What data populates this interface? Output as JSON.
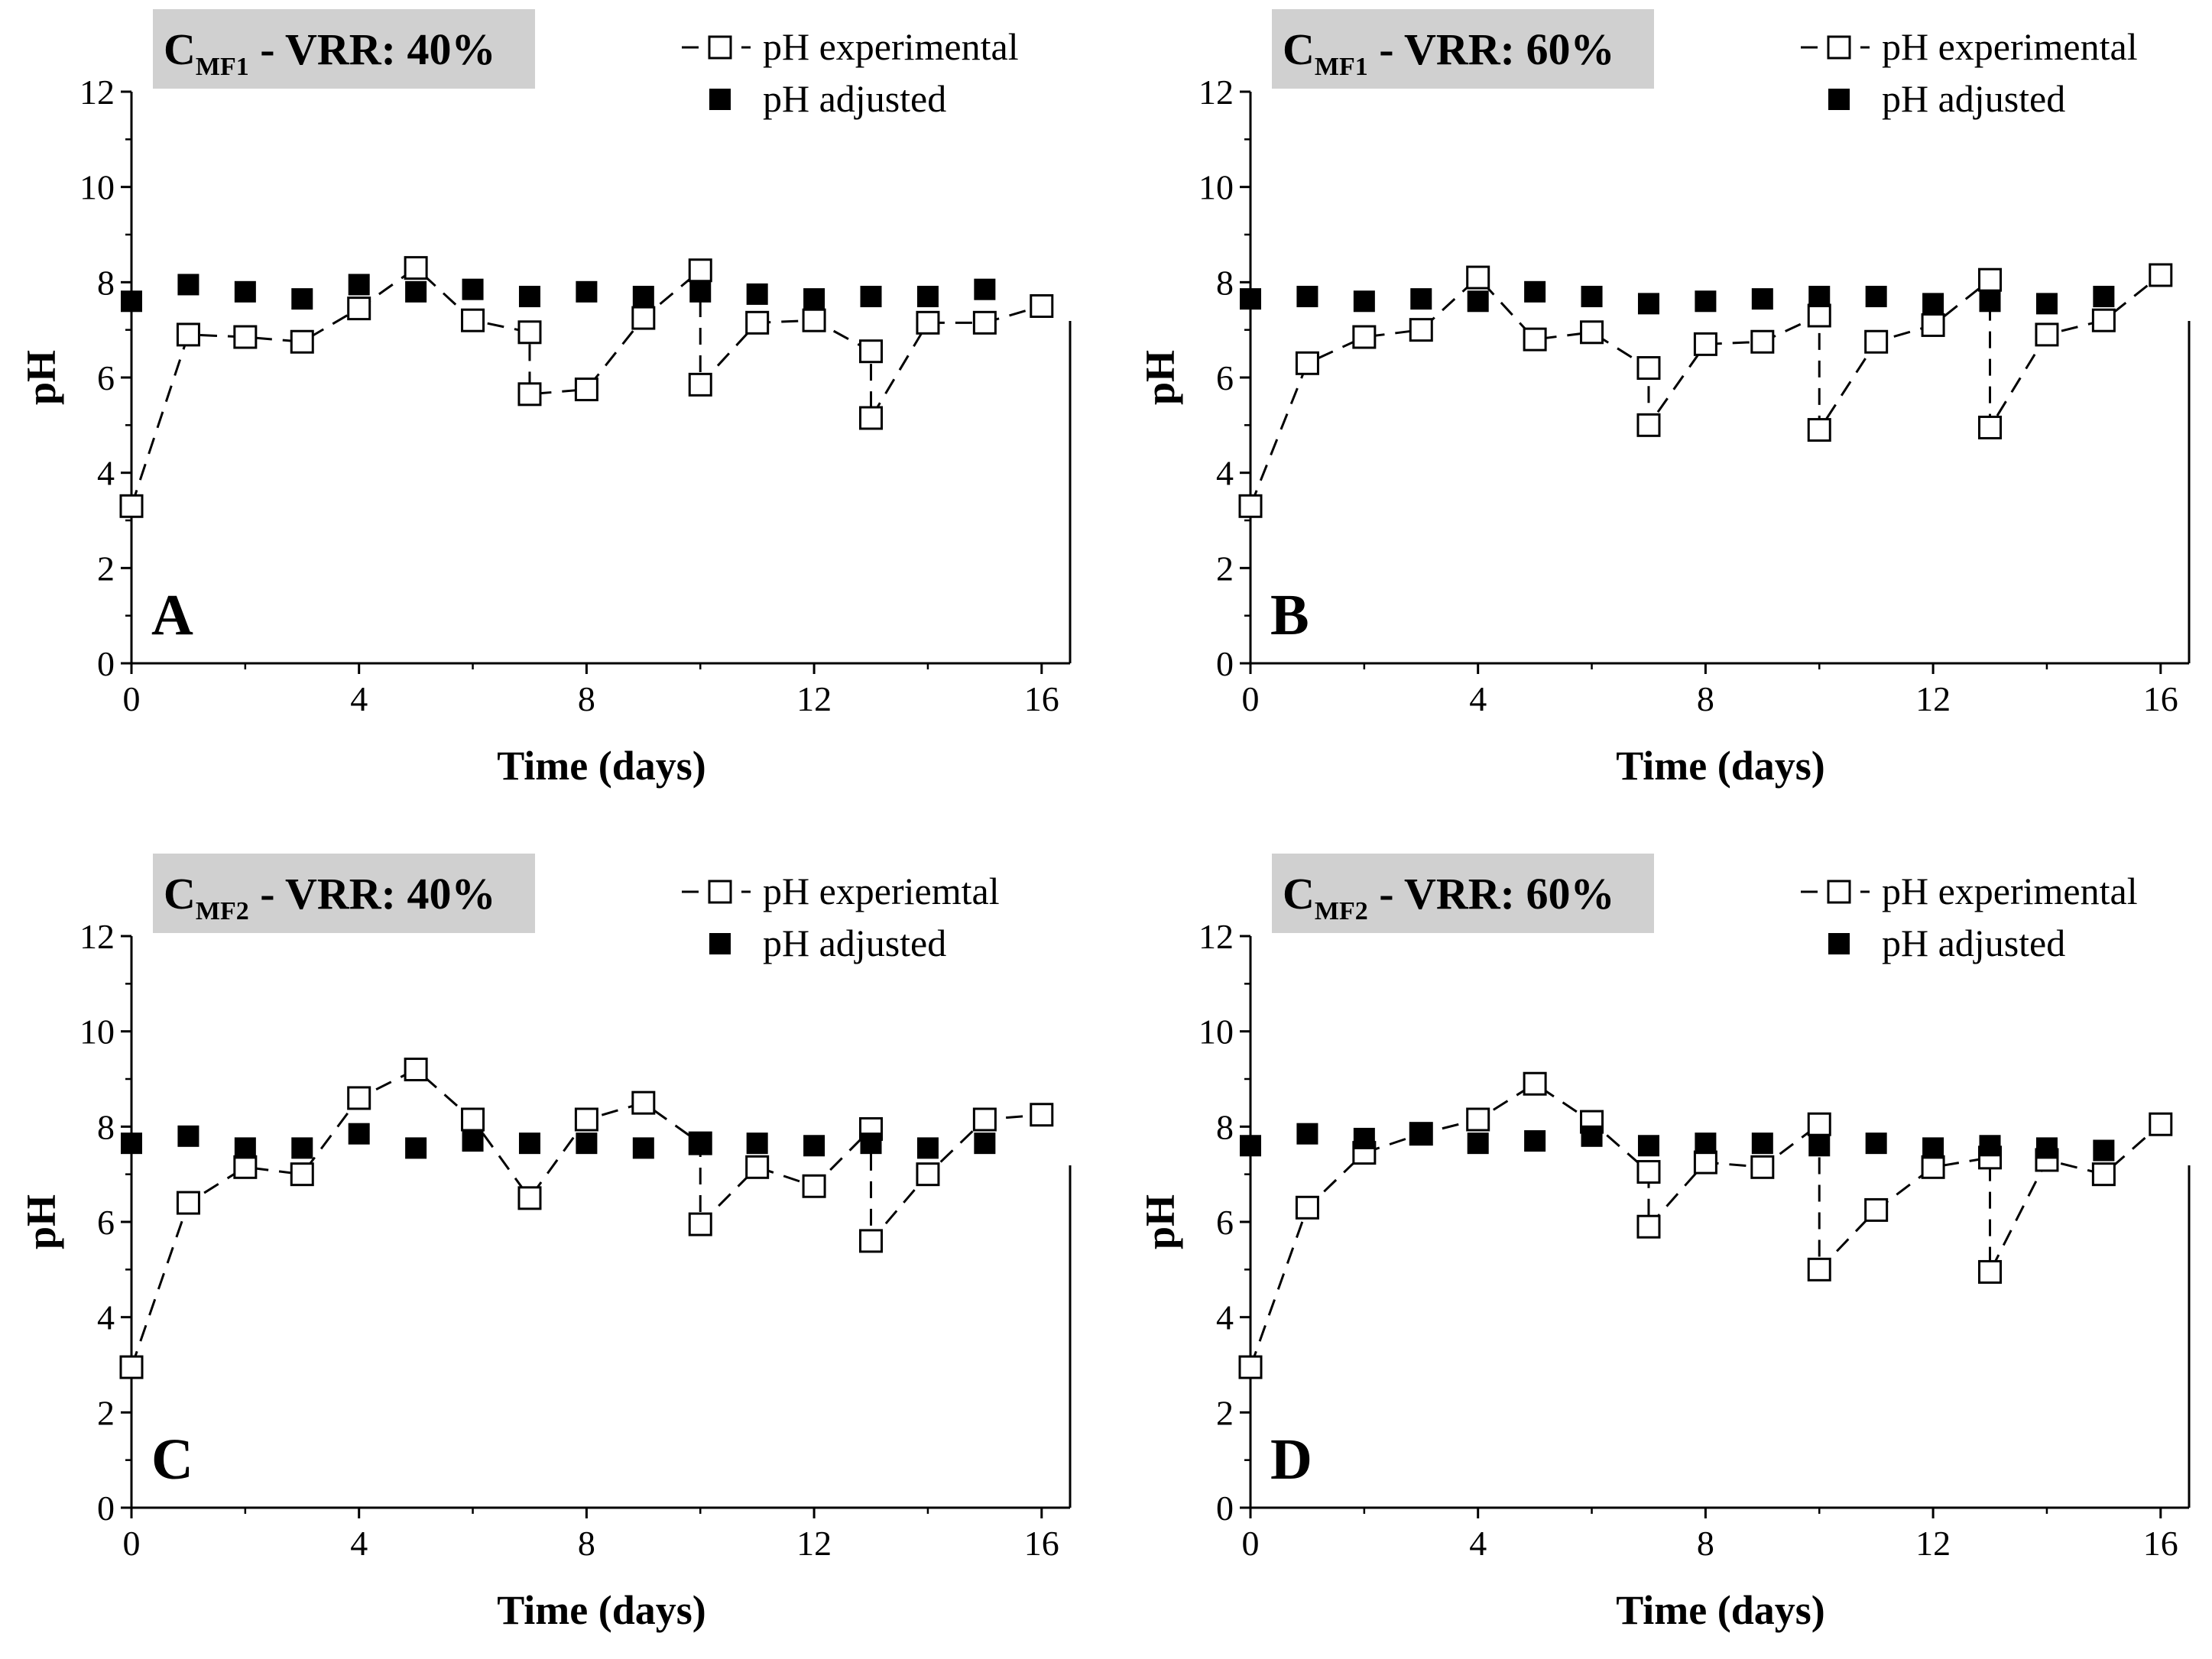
{
  "figure": {
    "description_visible": false
  },
  "chart_data": [
    {
      "id": "A",
      "type": "line",
      "panel_letter": "A",
      "title": {
        "main": "C",
        "sub": "MF1",
        "rest": " - VRR: 40%"
      },
      "xlabel": "Time (days)",
      "ylabel": "pH",
      "xlim": [
        0,
        16.5
      ],
      "ylim": [
        0,
        12
      ],
      "xticks": [
        0,
        4,
        8,
        12,
        16
      ],
      "yticks": [
        0,
        2,
        4,
        6,
        8,
        10,
        12
      ],
      "grid": false,
      "legend_position": "top-right",
      "series": [
        {
          "name": "pH experimental",
          "style": "dashed-open-square",
          "x": [
            0,
            1,
            2,
            3,
            4,
            5,
            6,
            7,
            7,
            8,
            9,
            10,
            10,
            11,
            12,
            13,
            13,
            14,
            15,
            16
          ],
          "y": [
            3.3,
            6.9,
            6.85,
            6.75,
            7.45,
            8.3,
            7.2,
            6.95,
            5.65,
            5.75,
            7.25,
            8.25,
            5.85,
            7.15,
            7.2,
            6.55,
            5.15,
            7.15,
            7.15,
            7.5
          ]
        },
        {
          "name": "pH adjusted",
          "style": "filled-square",
          "x": [
            0,
            1,
            2,
            3,
            4,
            5,
            6,
            7,
            8,
            9,
            10,
            11,
            12,
            13,
            14,
            15
          ],
          "y": [
            7.6,
            7.95,
            7.8,
            7.65,
            7.95,
            7.8,
            7.85,
            7.7,
            7.8,
            7.7,
            7.8,
            7.75,
            7.65,
            7.7,
            7.7,
            7.85
          ]
        }
      ]
    },
    {
      "id": "B",
      "type": "line",
      "panel_letter": "B",
      "title": {
        "main": "C",
        "sub": "MF1",
        "rest": " - VRR: 60%"
      },
      "xlabel": "Time (days)",
      "ylabel": "pH",
      "xlim": [
        0,
        16.5
      ],
      "ylim": [
        0,
        12
      ],
      "xticks": [
        0,
        4,
        8,
        12,
        16
      ],
      "yticks": [
        0,
        2,
        4,
        6,
        8,
        10,
        12
      ],
      "grid": false,
      "legend_position": "top-right",
      "series": [
        {
          "name": "pH experimental",
          "style": "dashed-open-square",
          "x": [
            0,
            1,
            2,
            3,
            4,
            5,
            6,
            7,
            7,
            8,
            9,
            10,
            10,
            11,
            12,
            13,
            13,
            14,
            15,
            16
          ],
          "y": [
            3.3,
            6.3,
            6.85,
            7.0,
            8.1,
            6.8,
            6.95,
            6.2,
            5.0,
            6.7,
            6.75,
            7.3,
            4.9,
            6.75,
            7.1,
            8.05,
            4.95,
            6.9,
            7.2,
            8.15
          ]
        },
        {
          "name": "pH adjusted",
          "style": "filled-square",
          "x": [
            0,
            1,
            2,
            3,
            4,
            5,
            6,
            7,
            8,
            9,
            10,
            11,
            12,
            13,
            14,
            15
          ],
          "y": [
            7.65,
            7.7,
            7.6,
            7.65,
            7.6,
            7.8,
            7.7,
            7.55,
            7.6,
            7.65,
            7.7,
            7.7,
            7.55,
            7.6,
            7.55,
            7.7
          ]
        }
      ]
    },
    {
      "id": "C",
      "type": "line",
      "panel_letter": "C",
      "title": {
        "main": "C",
        "sub": "MF2",
        "rest": " - VRR: 40%"
      },
      "xlabel": "Time (days)",
      "ylabel": "pH",
      "xlim": [
        0,
        16.5
      ],
      "ylim": [
        0,
        12
      ],
      "xticks": [
        0,
        4,
        8,
        12,
        16
      ],
      "yticks": [
        0,
        2,
        4,
        6,
        8,
        10,
        12
      ],
      "grid": false,
      "legend_position": "top-right",
      "series": [
        {
          "name": "pH experiemtal",
          "style": "dashed-open-square",
          "x": [
            0,
            1,
            2,
            3,
            4,
            5,
            6,
            7,
            8,
            9,
            10,
            10,
            11,
            12,
            13,
            13,
            14,
            15,
            16
          ],
          "y": [
            2.95,
            6.4,
            7.15,
            7.0,
            8.6,
            9.2,
            8.15,
            6.5,
            8.15,
            8.5,
            7.65,
            5.95,
            7.15,
            6.75,
            7.95,
            5.6,
            7.0,
            8.15,
            8.25
          ]
        },
        {
          "name": "pH adjusted",
          "style": "filled-square",
          "x": [
            0,
            1,
            2,
            3,
            4,
            5,
            6,
            7,
            8,
            9,
            10,
            11,
            12,
            13,
            14,
            15
          ],
          "y": [
            7.65,
            7.8,
            7.55,
            7.55,
            7.85,
            7.55,
            7.7,
            7.65,
            7.65,
            7.55,
            7.65,
            7.65,
            7.6,
            7.65,
            7.55,
            7.65
          ]
        }
      ]
    },
    {
      "id": "D",
      "type": "line",
      "panel_letter": "D",
      "title": {
        "main": "C",
        "sub": "MF2",
        "rest": " - VRR: 60%"
      },
      "xlabel": "Time (days)",
      "ylabel": "pH",
      "xlim": [
        0,
        16.5
      ],
      "ylim": [
        0,
        12
      ],
      "xticks": [
        0,
        4,
        8,
        12,
        16
      ],
      "yticks": [
        0,
        2,
        4,
        6,
        8,
        10,
        12
      ],
      "grid": false,
      "legend_position": "top-right",
      "series": [
        {
          "name": "pH experimental",
          "style": "dashed-open-square",
          "x": [
            0,
            1,
            2,
            3,
            4,
            5,
            6,
            7,
            7,
            8,
            9,
            10,
            10,
            11,
            12,
            13,
            13,
            14,
            15,
            16
          ],
          "y": [
            2.95,
            6.3,
            7.45,
            7.85,
            8.15,
            8.9,
            8.1,
            7.05,
            5.9,
            7.25,
            7.15,
            8.05,
            5.0,
            6.25,
            7.15,
            7.35,
            4.95,
            7.3,
            7.0,
            8.05
          ]
        },
        {
          "name": "pH adjusted",
          "style": "filled-square",
          "x": [
            0,
            1,
            2,
            3,
            4,
            5,
            6,
            7,
            8,
            9,
            10,
            11,
            12,
            13,
            14,
            15
          ],
          "y": [
            7.6,
            7.85,
            7.75,
            7.85,
            7.65,
            7.7,
            7.8,
            7.6,
            7.65,
            7.65,
            7.6,
            7.65,
            7.55,
            7.6,
            7.55,
            7.5
          ]
        }
      ]
    }
  ]
}
